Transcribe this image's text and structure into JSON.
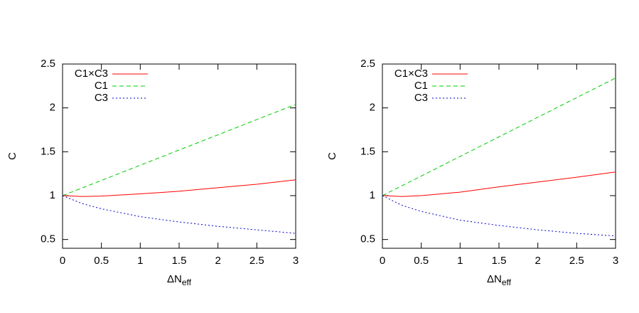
{
  "chart_data": [
    {
      "type": "line",
      "x_label": "ΔN",
      "x_label_sub": "eff",
      "y_label": "C",
      "x": [
        0,
        0.25,
        0.5,
        1,
        1.5,
        2,
        2.5,
        3
      ],
      "series": [
        {
          "name": "C1×C3",
          "color": "#ff0000",
          "dash": "solid",
          "values": [
            1,
            0.99,
            0.995,
            1.02,
            1.05,
            1.09,
            1.13,
            1.18
          ]
        },
        {
          "name": "C1",
          "color": "#00cc00",
          "dash": "dashed",
          "values": [
            1,
            1.087,
            1.173,
            1.347,
            1.52,
            1.693,
            1.867,
            2.04
          ]
        },
        {
          "name": "C3",
          "color": "#0000cc",
          "dash": "dotted",
          "values": [
            1,
            0.91,
            0.85,
            0.76,
            0.7,
            0.65,
            0.61,
            0.57
          ]
        }
      ],
      "xlim": [
        0,
        3
      ],
      "ylim": [
        0.4,
        2.5
      ],
      "xticks": [
        0,
        0.5,
        1,
        1.5,
        2,
        2.5,
        3
      ],
      "yticks": [
        0.5,
        1,
        1.5,
        2,
        2.5
      ],
      "legend": "top-left",
      "grid": false
    },
    {
      "type": "line",
      "x_label": "ΔN",
      "x_label_sub": "eff",
      "y_label": "C",
      "x": [
        0,
        0.25,
        0.5,
        1,
        1.5,
        2,
        2.5,
        3
      ],
      "series": [
        {
          "name": "C1×C3",
          "color": "#ff0000",
          "dash": "solid",
          "values": [
            1,
            0.99,
            1.0,
            1.04,
            1.1,
            1.155,
            1.21,
            1.27
          ]
        },
        {
          "name": "C1",
          "color": "#00cc00",
          "dash": "dashed",
          "values": [
            1,
            1.112,
            1.223,
            1.447,
            1.67,
            1.893,
            2.117,
            2.34
          ]
        },
        {
          "name": "C3",
          "color": "#0000cc",
          "dash": "dotted",
          "values": [
            1,
            0.89,
            0.82,
            0.72,
            0.66,
            0.61,
            0.57,
            0.54
          ]
        }
      ],
      "xlim": [
        0,
        3
      ],
      "ylim": [
        0.4,
        2.5
      ],
      "xticks": [
        0,
        0.5,
        1,
        1.5,
        2,
        2.5,
        3
      ],
      "yticks": [
        0.5,
        1,
        1.5,
        2,
        2.5
      ],
      "legend": "top-left",
      "grid": false
    }
  ]
}
